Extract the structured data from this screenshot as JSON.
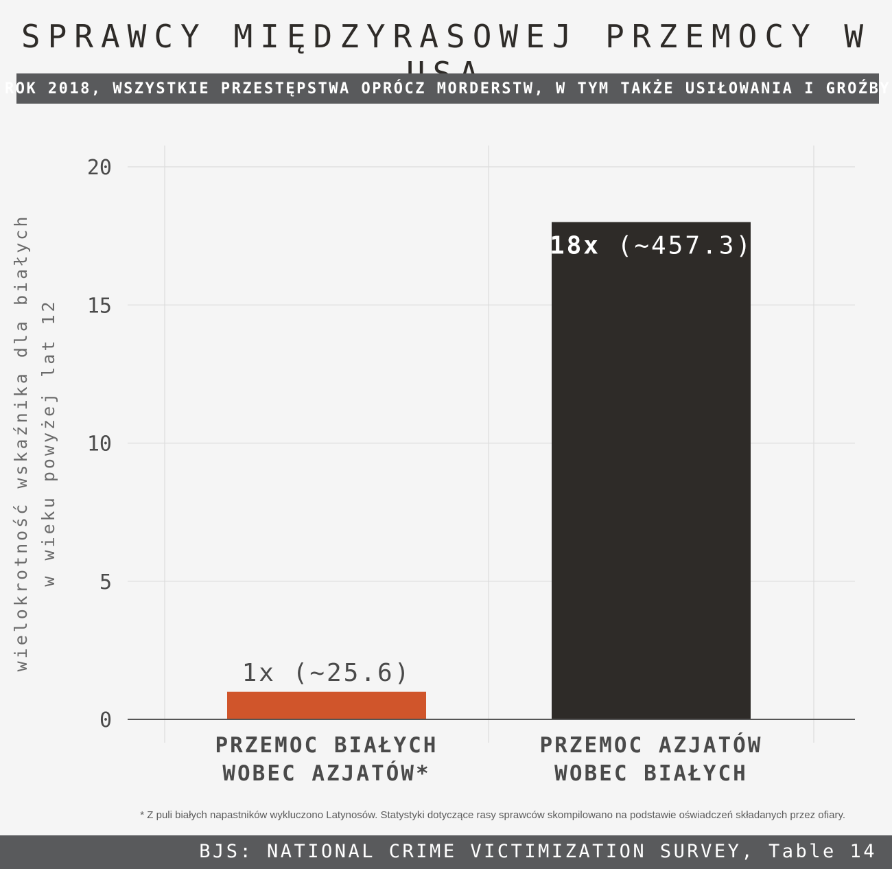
{
  "chart_data": {
    "type": "bar",
    "title": "SPRAWCY MIĘDZYRASOWEJ PRZEMOCY W USA",
    "subtitle": "ROK 2018, WSZYSTKIE PRZESTĘPSTWA OPRÓCZ MORDERSTW, W TYM TAKŻE USIŁOWANIA I GROŹBY",
    "ylabel_line1": "wielokrotność wskaźnika dla białych",
    "ylabel_line2": "w wieku powyżej lat 12",
    "xlabel": "",
    "ylim": [
      0,
      20
    ],
    "yticks": [
      0,
      5,
      10,
      15,
      20
    ],
    "grid": true,
    "categories": [
      [
        "PRZEMOC BIAŁYCH",
        "WOBEC AZJATÓW*"
      ],
      [
        "PRZEMOC AZJATÓW",
        "WOBEC BIAŁYCH"
      ]
    ],
    "values": [
      1,
      18
    ],
    "data_labels": [
      {
        "main": "1x",
        "extra": "(~25.6)"
      },
      {
        "main": "18x",
        "extra": "(~457.3)"
      }
    ],
    "colors": [
      "#d0552b",
      "#2e2b28"
    ]
  },
  "footnote": "* Z puli białych napastników wykluczono Latynosów. Statystyki dotyczące rasy sprawców skompilowano na podstawie oświadczeń składanych przez ofiary.",
  "source": "BJS: NATIONAL CRIME VICTIMIZATION SURVEY, Table 14"
}
